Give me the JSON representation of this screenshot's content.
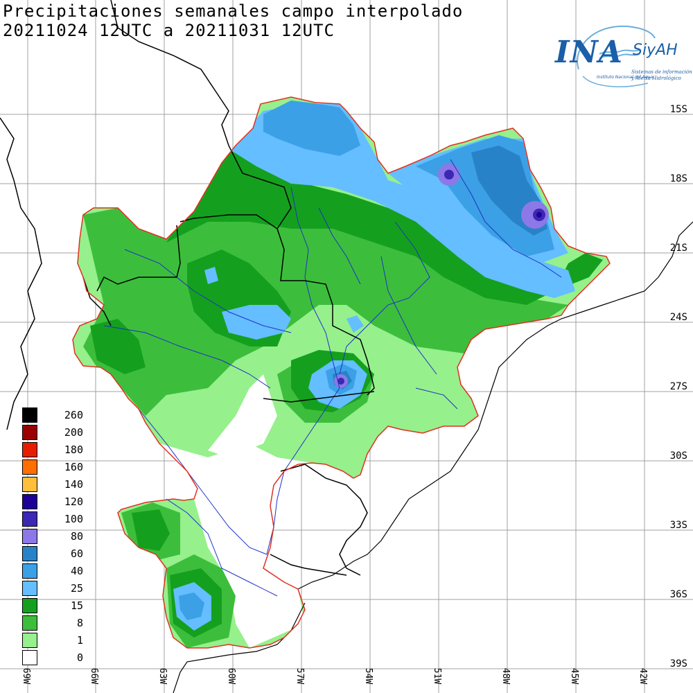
{
  "title": {
    "line1": "Precipitaciones semanales campo interpolado",
    "line2": "20211024 12UTC a 20211031 12UTC"
  },
  "logo": {
    "name": "INA",
    "brand": "SiyAH",
    "institution": "Instituto Nacional del Agua",
    "system_line1": "Sistemas de información",
    "system_line2": "y Alerta Hidrológico"
  },
  "grid": {
    "latitudes": [
      "15S",
      "18S",
      "21S",
      "24S",
      "27S",
      "30S",
      "33S",
      "36S",
      "39S"
    ],
    "longitudes": [
      "69W",
      "66W",
      "63W",
      "60W",
      "57W",
      "54W",
      "51W",
      "48W",
      "45W",
      "42W"
    ]
  },
  "legend": {
    "items": [
      {
        "label": "260",
        "color": "#000000"
      },
      {
        "label": "200",
        "color": "#9b0000"
      },
      {
        "label": "180",
        "color": "#e61e00"
      },
      {
        "label": "160",
        "color": "#ff6e00"
      },
      {
        "label": "140",
        "color": "#ffbe3c"
      },
      {
        "label": "120",
        "color": "#1e0096"
      },
      {
        "label": "100",
        "color": "#3c28b4"
      },
      {
        "label": "80",
        "color": "#8c78e6"
      },
      {
        "label": "60",
        "color": "#2882c8"
      },
      {
        "label": "40",
        "color": "#3ca0e6"
      },
      {
        "label": "25",
        "color": "#64beff"
      },
      {
        "label": "15",
        "color": "#14a01e"
      },
      {
        "label": "8",
        "color": "#3cbe3c"
      },
      {
        "label": "1",
        "color": "#96f08c"
      },
      {
        "label": "0",
        "color": "#ffffff"
      }
    ]
  },
  "colors": {
    "basin_outline": "#e03020",
    "borders": "#000000",
    "rivers": "#2030c8",
    "grid": "#a0a0a0"
  }
}
